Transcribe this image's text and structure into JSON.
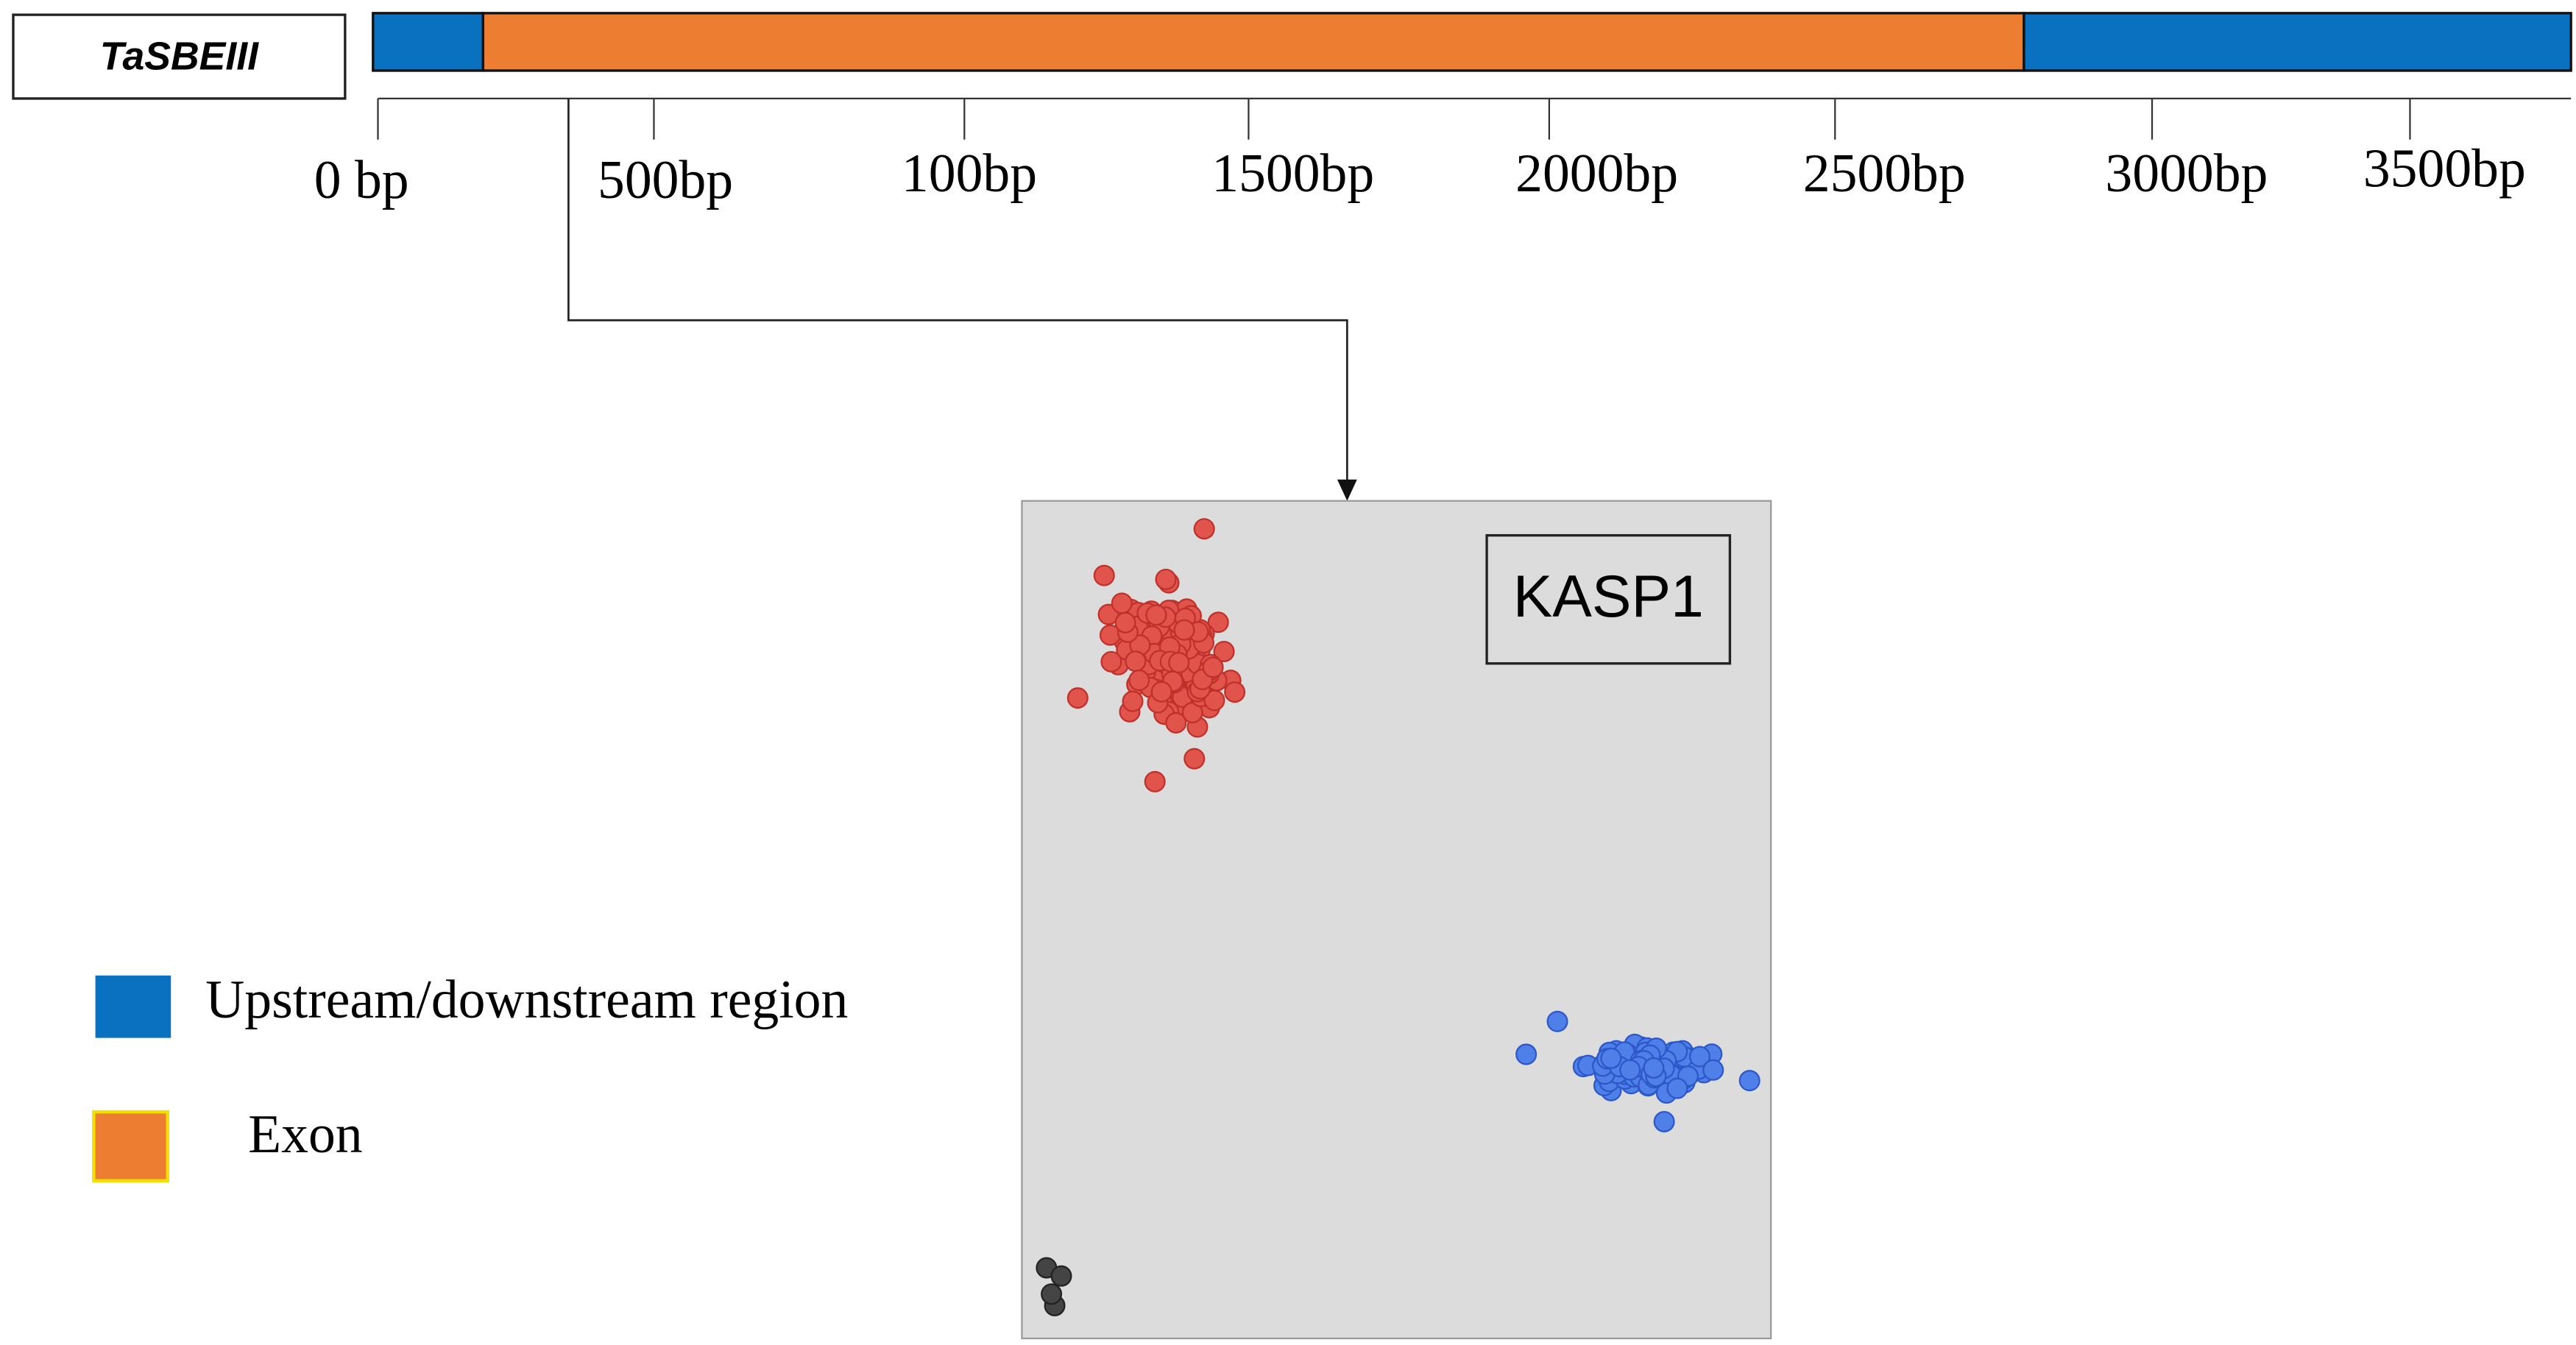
{
  "gene": {
    "label": "TaSBEIII"
  },
  "axis": {
    "ticks": [
      "0 bp",
      "500bp",
      "100bp",
      "1500bp",
      "2000bp",
      "2500bp",
      "3000bp",
      "3500bp"
    ]
  },
  "plot": {
    "label": "KASP1"
  },
  "legend": {
    "items": [
      "Upstream/downstream region",
      "Exon"
    ]
  }
}
